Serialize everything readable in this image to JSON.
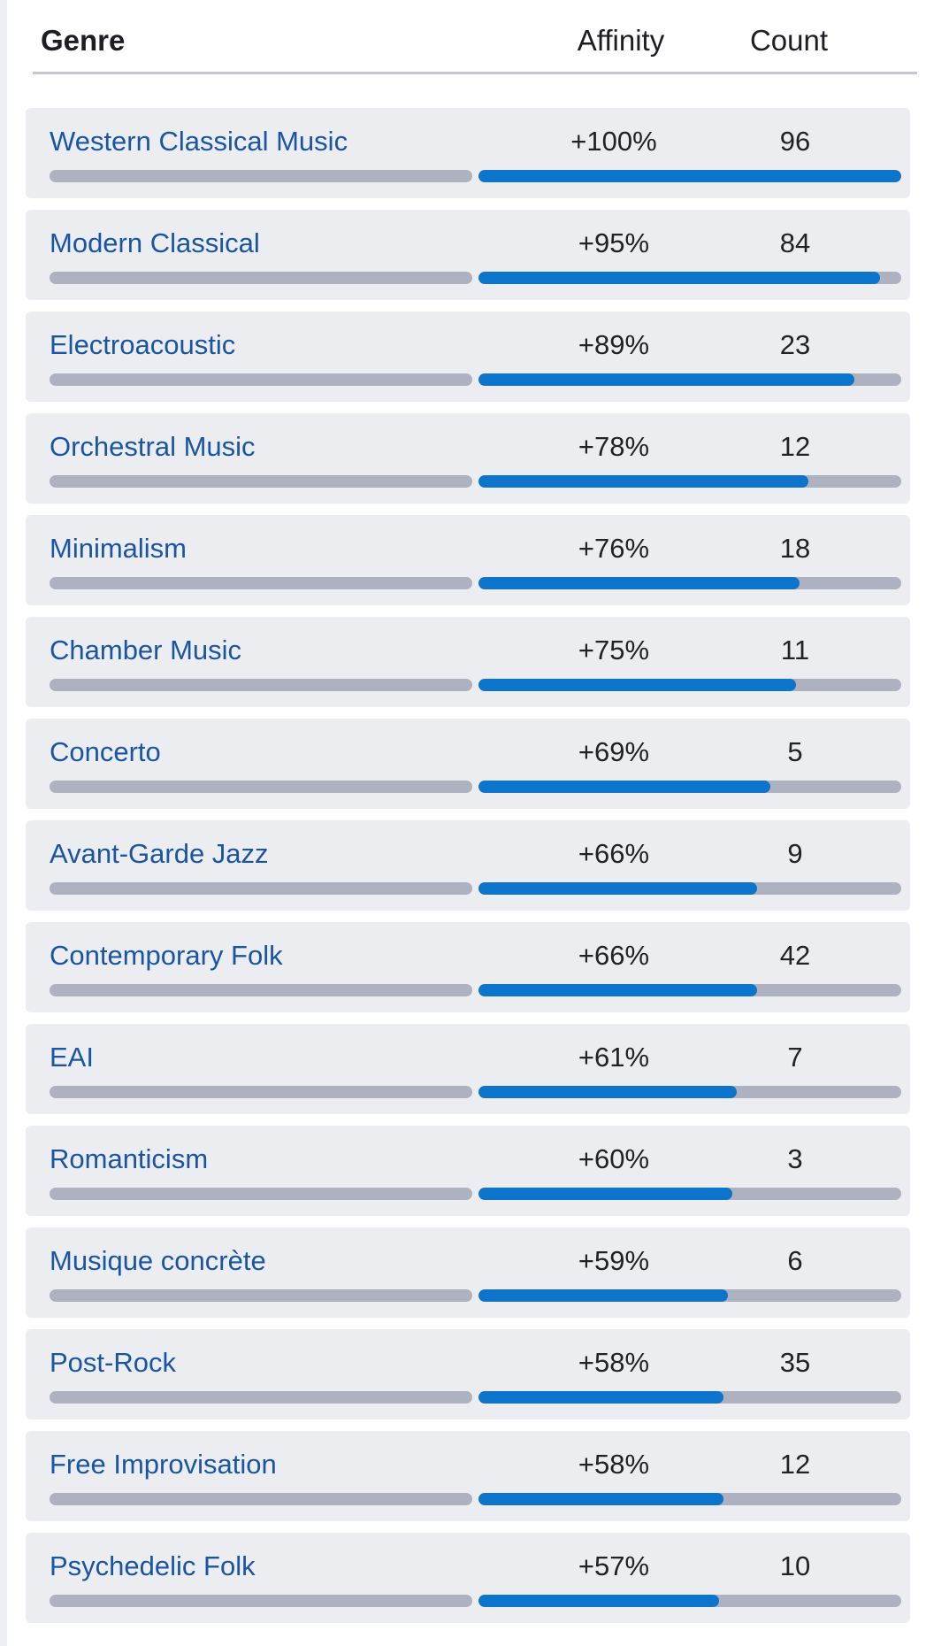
{
  "header": {
    "genre_label": "Genre",
    "affinity_label": "Affinity",
    "count_label": "Count"
  },
  "colors": {
    "link": "#1a55a3",
    "bar_fill": "#0c74cb",
    "bar_track": "#adb1c0"
  },
  "genres": [
    {
      "name": "Western Classical Music",
      "affinity": "+100%",
      "affinity_value": 100,
      "count": "96"
    },
    {
      "name": "Modern Classical",
      "affinity": "+95%",
      "affinity_value": 95,
      "count": "84"
    },
    {
      "name": "Electroacoustic",
      "affinity": "+89%",
      "affinity_value": 89,
      "count": "23"
    },
    {
      "name": "Orchestral Music",
      "affinity": "+78%",
      "affinity_value": 78,
      "count": "12"
    },
    {
      "name": "Minimalism",
      "affinity": "+76%",
      "affinity_value": 76,
      "count": "18"
    },
    {
      "name": "Chamber Music",
      "affinity": "+75%",
      "affinity_value": 75,
      "count": "11"
    },
    {
      "name": "Concerto",
      "affinity": "+69%",
      "affinity_value": 69,
      "count": "5"
    },
    {
      "name": "Avant-Garde Jazz",
      "affinity": "+66%",
      "affinity_value": 66,
      "count": "9"
    },
    {
      "name": "Contemporary Folk",
      "affinity": "+66%",
      "affinity_value": 66,
      "count": "42"
    },
    {
      "name": "EAI",
      "affinity": "+61%",
      "affinity_value": 61,
      "count": "7"
    },
    {
      "name": "Romanticism",
      "affinity": "+60%",
      "affinity_value": 60,
      "count": "3"
    },
    {
      "name": "Musique concrète",
      "affinity": "+59%",
      "affinity_value": 59,
      "count": "6"
    },
    {
      "name": "Post-Rock",
      "affinity": "+58%",
      "affinity_value": 58,
      "count": "35"
    },
    {
      "name": "Free Improvisation",
      "affinity": "+58%",
      "affinity_value": 58,
      "count": "12"
    },
    {
      "name": "Psychedelic Folk",
      "affinity": "+57%",
      "affinity_value": 57,
      "count": "10"
    }
  ]
}
